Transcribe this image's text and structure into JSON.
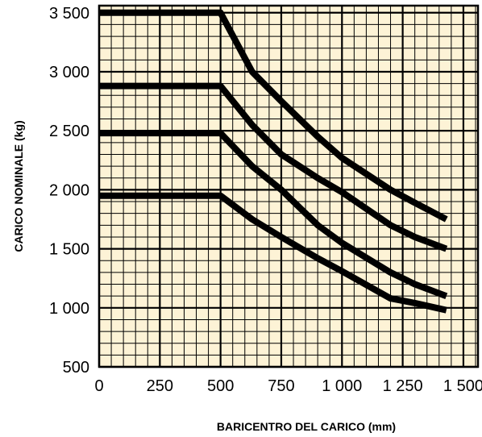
{
  "chart_data": {
    "type": "line",
    "title": "",
    "xlabel": "BARICENTRO DEL CARICO (mm)",
    "ylabel": "CARICO NOMINALE (kg)",
    "xlim": [
      0,
      1560
    ],
    "ylim": [
      500,
      3560
    ],
    "x_ticks": [
      0,
      250,
      500,
      750,
      1000,
      1250,
      1500
    ],
    "x_tick_labels": [
      "0",
      "250",
      "500",
      "750",
      "1 000",
      "1 250",
      "1 500"
    ],
    "y_ticks": [
      500,
      1000,
      1500,
      2000,
      2500,
      3000,
      3500
    ],
    "y_tick_labels": [
      "500",
      "1 000",
      "1 500",
      "2 000",
      "2 500",
      "3 000",
      "3 500"
    ],
    "minor_step_x": 50,
    "minor_step_y": 100,
    "grid": true,
    "background_color": "#fdf3d6",
    "line_color": "#000000",
    "series": [
      {
        "x": [
          0,
          500,
          630,
          750,
          900,
          1000,
          1200,
          1300,
          1430
        ],
        "y": [
          3500,
          3500,
          3000,
          2750,
          2450,
          2270,
          2000,
          1890,
          1750
        ]
      },
      {
        "x": [
          0,
          500,
          630,
          750,
          900,
          1000,
          1200,
          1300,
          1430
        ],
        "y": [
          2880,
          2880,
          2550,
          2300,
          2100,
          1980,
          1700,
          1600,
          1500
        ]
      },
      {
        "x": [
          0,
          500,
          630,
          750,
          900,
          1000,
          1200,
          1300,
          1430
        ],
        "y": [
          2480,
          2480,
          2200,
          2000,
          1700,
          1550,
          1300,
          1200,
          1100
        ]
      },
      {
        "x": [
          0,
          500,
          630,
          750,
          900,
          1000,
          1200,
          1300,
          1430
        ],
        "y": [
          1950,
          1950,
          1750,
          1600,
          1420,
          1310,
          1080,
          1040,
          980
        ]
      }
    ]
  }
}
